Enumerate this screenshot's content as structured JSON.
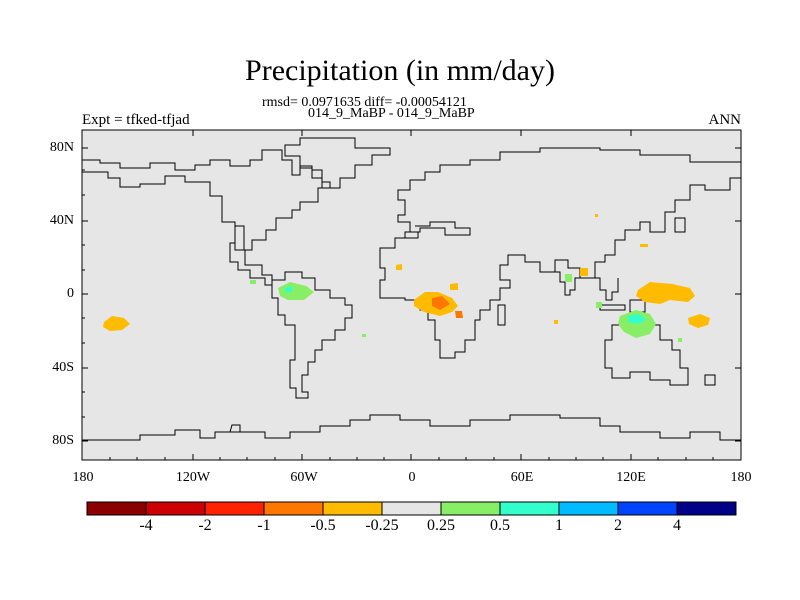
{
  "title": "Precipitation (in mm/day)",
  "stats": "rmsd= 0.0971635 diff= -0.00054121",
  "period": "014_9_MaBP - 014_9_MaBP",
  "experiment": "Expt = tfked-tfjad",
  "season": "ANN",
  "y_axis": {
    "ticks": [
      "80N",
      "40N",
      "0",
      "40S",
      "80S"
    ]
  },
  "x_axis": {
    "ticks": [
      "180",
      "120W",
      "60W",
      "0",
      "60E",
      "120E",
      "180"
    ]
  },
  "colorbar": {
    "colors": [
      "#8b0000",
      "#cc0000",
      "#ff2200",
      "#ff7700",
      "#ffbb00",
      "#e6e6e6",
      "#88ee66",
      "#33ffcc",
      "#00bbff",
      "#0044ff",
      "#000088"
    ],
    "labels": [
      "-4",
      "-2",
      "-1",
      "-0.5",
      "-0.25",
      "0.25",
      "0.5",
      "1",
      "2",
      "4"
    ]
  },
  "colors": {
    "land_background": "#e6e6e6",
    "coastline": "#000000"
  }
}
